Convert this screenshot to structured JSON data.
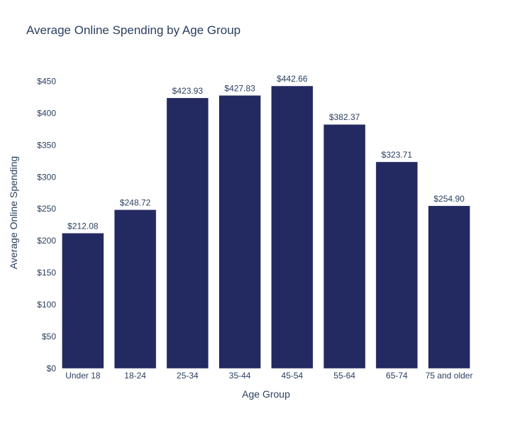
{
  "chart_data": {
    "type": "bar",
    "title": "Average Online Spending by Age Group",
    "xlabel": "Age Group",
    "ylabel": "Average Online Spending",
    "categories": [
      "Under 18",
      "18-24",
      "25-34",
      "35-44",
      "45-54",
      "55-64",
      "65-74",
      "75 and older"
    ],
    "values": [
      212.08,
      248.72,
      423.93,
      427.83,
      442.66,
      382.37,
      323.71,
      254.9
    ],
    "data_labels": [
      "$212.08",
      "$248.72",
      "$423.93",
      "$427.83",
      "$442.66",
      "$382.37",
      "$323.71",
      "$254.90"
    ],
    "y_ticks": [
      0,
      50,
      100,
      150,
      200,
      250,
      300,
      350,
      400,
      450
    ],
    "y_tick_labels": [
      "$0",
      "$50",
      "$100",
      "$150",
      "$200",
      "$250",
      "$300",
      "$350",
      "$400",
      "$450"
    ],
    "ylim": [
      0,
      466
    ],
    "grid": false,
    "legend": "none",
    "bar_color": "#232a62",
    "bar_outline": "#ffffff"
  }
}
